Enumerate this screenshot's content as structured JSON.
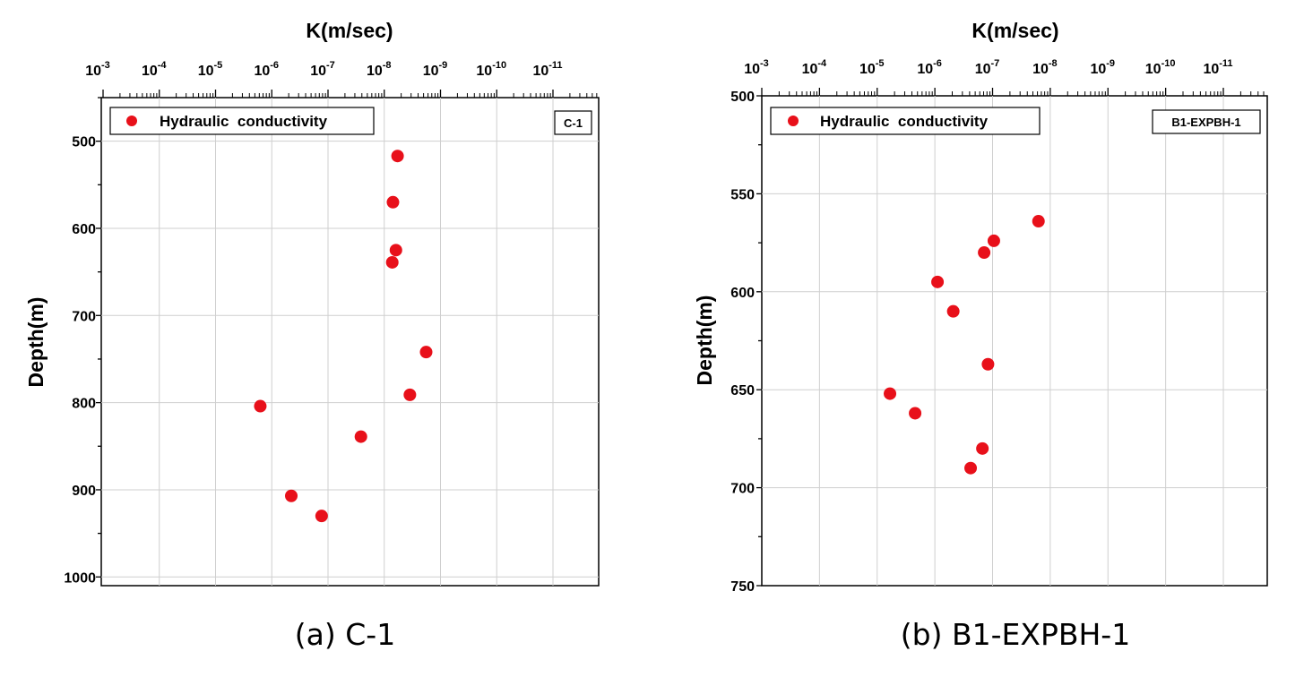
{
  "chart_data": [
    {
      "type": "scatter",
      "caption": "(a) C-1",
      "x_title": "K(m/sec)",
      "y_title": "Depth(m)",
      "x_scale": "log-reversed",
      "x_range": [
        0.001,
        1e-11
      ],
      "x_ticks": [
        {
          "base": "10",
          "exp": "-3"
        },
        {
          "base": "10",
          "exp": "-4"
        },
        {
          "base": "10",
          "exp": "-5"
        },
        {
          "base": "10",
          "exp": "-6"
        },
        {
          "base": "10",
          "exp": "-7"
        },
        {
          "base": "10",
          "exp": "-8"
        },
        {
          "base": "10",
          "exp": "-9"
        },
        {
          "base": "10",
          "exp": "-10"
        },
        {
          "base": "10",
          "exp": "-11"
        }
      ],
      "y_range": [
        450,
        1010
      ],
      "y_reversed": true,
      "y_ticks": [
        "500",
        "600",
        "700",
        "800",
        "900",
        "1000"
      ],
      "legend": "Hydraulic  conductivity",
      "tag": "C-1",
      "grid": true,
      "marker_color": "#e8101a",
      "series": [
        {
          "name": "Hydraulic  conductivity",
          "points": [
            {
              "k": 5.8e-09,
              "depth": 517
            },
            {
              "k": 7e-09,
              "depth": 570
            },
            {
              "k": 6.2e-09,
              "depth": 625
            },
            {
              "k": 7.2e-09,
              "depth": 639
            },
            {
              "k": 1.8e-09,
              "depth": 742
            },
            {
              "k": 3.5e-09,
              "depth": 791
            },
            {
              "k": 1.6e-06,
              "depth": 804
            },
            {
              "k": 2.6e-08,
              "depth": 839
            },
            {
              "k": 4.5e-07,
              "depth": 907
            },
            {
              "k": 1.3e-07,
              "depth": 930
            }
          ]
        }
      ]
    },
    {
      "type": "scatter",
      "caption": "(b) B1-EXPBH-1",
      "x_title": "K(m/sec)",
      "y_title": "Depth(m)",
      "x_scale": "log-reversed",
      "x_range": [
        0.001,
        1e-11
      ],
      "x_ticks": [
        {
          "base": "10",
          "exp": "-3"
        },
        {
          "base": "10",
          "exp": "-4"
        },
        {
          "base": "10",
          "exp": "-5"
        },
        {
          "base": "10",
          "exp": "-6"
        },
        {
          "base": "10",
          "exp": "-7"
        },
        {
          "base": "10",
          "exp": "-8"
        },
        {
          "base": "10",
          "exp": "-9"
        },
        {
          "base": "10",
          "exp": "-10"
        },
        {
          "base": "10",
          "exp": "-11"
        }
      ],
      "y_range": [
        500,
        750
      ],
      "y_reversed": true,
      "y_ticks": [
        "500",
        "550",
        "600",
        "650",
        "700",
        "750"
      ],
      "legend": "Hydraulic  conductivity",
      "tag": "B1-EXPBH-1",
      "grid": true,
      "marker_color": "#e8101a",
      "series": [
        {
          "name": "Hydraulic  conductivity",
          "points": [
            {
              "k": 1.6e-08,
              "depth": 564
            },
            {
              "k": 9.5e-08,
              "depth": 574
            },
            {
              "k": 1.4e-07,
              "depth": 580
            },
            {
              "k": 9e-07,
              "depth": 595
            },
            {
              "k": 4.8e-07,
              "depth": 610
            },
            {
              "k": 1.2e-07,
              "depth": 637
            },
            {
              "k": 6e-06,
              "depth": 652
            },
            {
              "k": 2.2e-06,
              "depth": 662
            },
            {
              "k": 1.5e-07,
              "depth": 680
            },
            {
              "k": 2.4e-07,
              "depth": 690
            }
          ]
        }
      ]
    }
  ]
}
